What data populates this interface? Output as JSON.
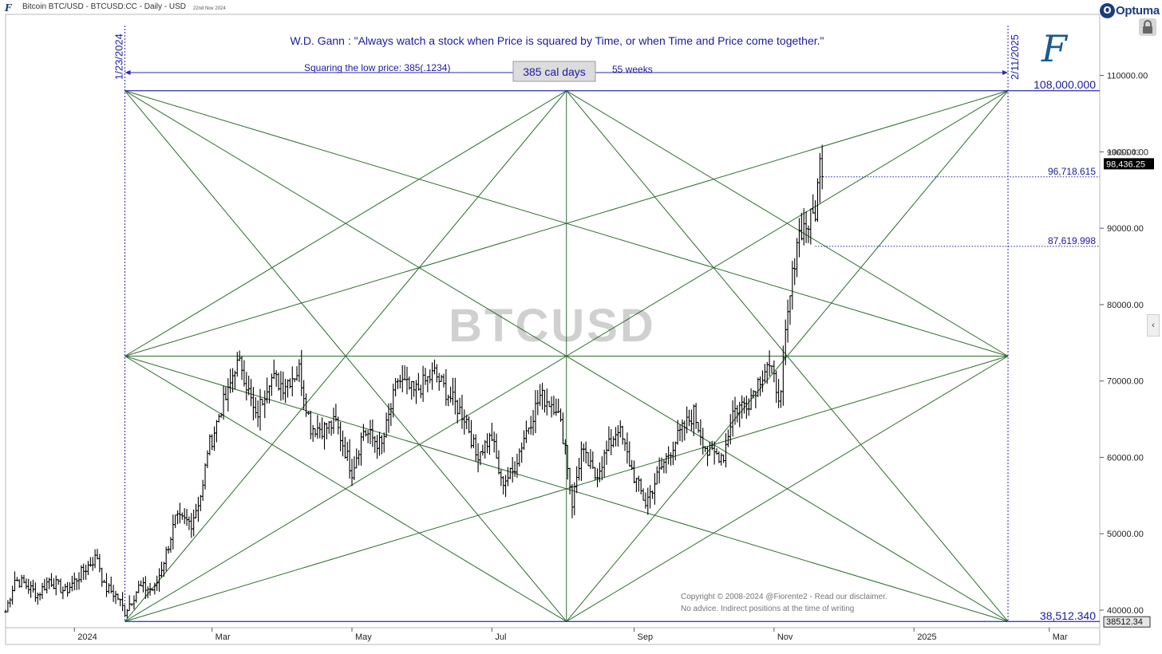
{
  "header": {
    "title": "Bitcoin BTC/USD - BTCUSD:CC - Daily - USD",
    "date": "22nd Nov 2024"
  },
  "brand": {
    "name": "Optuma",
    "badge": "O",
    "author_mark": "F",
    "corner_mark": "F"
  },
  "icons": {
    "lock": "lock-icon",
    "side_panel": "chevron-left-icon",
    "logo": "fiorente-logo-icon"
  },
  "colors": {
    "price_bars": "#000000",
    "gann_lines": "#2e6b2e",
    "annotation_blue": "#1a1aa0",
    "box_blue": "#2a2ab0",
    "watermark": "#d0d0d0",
    "price_tag_bg": "#000000"
  },
  "chart_data": {
    "type": "ohlc",
    "title": "",
    "instrument": "BTCUSD",
    "quote": "W.D. Gann : \"Always watch a stock when Price is squared by Time, or when Time and Price come together.\"",
    "watermark": "BTCUSD",
    "xlabel": "",
    "ylabel": "",
    "x_range": [
      "2023-12-02",
      "2025-03-23"
    ],
    "y_range": [
      37700,
      118000
    ],
    "y_ticks": [
      {
        "value": 40000,
        "label": "40000.00"
      },
      {
        "value": 50000,
        "label": "50000.00"
      },
      {
        "value": 60000,
        "label": "60000.00"
      },
      {
        "value": 70000,
        "label": "70000.00"
      },
      {
        "value": 80000,
        "label": "80000.00"
      },
      {
        "value": 90000,
        "label": "90000.00"
      },
      {
        "value": 100000,
        "label": "100000.00"
      },
      {
        "value": 110000,
        "label": "110000.00"
      }
    ],
    "x_ticks": [
      {
        "date": "2024-01-01",
        "label": "2024"
      },
      {
        "date": "2024-03-01",
        "label": "Mar"
      },
      {
        "date": "2024-05-01",
        "label": "May"
      },
      {
        "date": "2024-07-01",
        "label": "Jul"
      },
      {
        "date": "2024-09-01",
        "label": "Sep"
      },
      {
        "date": "2024-11-01",
        "label": "Nov"
      },
      {
        "date": "2025-01-01",
        "label": "2025"
      },
      {
        "date": "2025-03-01",
        "label": "Mar"
      }
    ],
    "gann_square": {
      "start_date": "2024-01-23",
      "end_date": "2025-02-11",
      "start_label": "1/23/2024",
      "end_label": "2/11/2025",
      "low": 38512.34,
      "high": 108000,
      "low_label": "38,512.340",
      "high_label": "108,000.000",
      "duration_label": "385 cal days",
      "squaring_text": "Squaring the low price: 385(.1234)",
      "weeks_label": "55 weeks"
    },
    "levels": [
      {
        "value": 96718.615,
        "label": "96,718.615",
        "from_date": "2024-11-21"
      },
      {
        "value": 87619.998,
        "label": "87,619.998",
        "from_date": "2024-11-19"
      }
    ],
    "price_tags": [
      {
        "value": 98436.25,
        "label": "98,436.25"
      },
      {
        "value": 38512.34,
        "label": "38512.34"
      }
    ],
    "last_price_partial_label": "99656.43",
    "footnotes": [
      "Copyright © 2008-2024 @Fiorente2 -  Read our disclaimer.",
      "No advice. Indirect positions at the time of writing"
    ],
    "anchors": [
      [
        "2023-12-02",
        39800
      ],
      [
        "2023-12-06",
        44000
      ],
      [
        "2023-12-10",
        43500
      ],
      [
        "2023-12-16",
        42000
      ],
      [
        "2023-12-21",
        44000
      ],
      [
        "2023-12-28",
        42400
      ],
      [
        "2024-01-03",
        44500
      ],
      [
        "2024-01-09",
        46500
      ],
      [
        "2024-01-11",
        47000
      ],
      [
        "2024-01-14",
        43000
      ],
      [
        "2024-01-17",
        42500
      ],
      [
        "2024-01-20",
        41600
      ],
      [
        "2024-01-23",
        39800
      ],
      [
        "2024-01-29",
        43000
      ],
      [
        "2024-02-05",
        42700
      ],
      [
        "2024-02-10",
        47500
      ],
      [
        "2024-02-14",
        51800
      ],
      [
        "2024-02-21",
        51500
      ],
      [
        "2024-02-26",
        56000
      ],
      [
        "2024-02-28",
        61000
      ],
      [
        "2024-03-01",
        62500
      ],
      [
        "2024-03-05",
        66500
      ],
      [
        "2024-03-08",
        68300
      ],
      [
        "2024-03-11",
        72000
      ],
      [
        "2024-03-14",
        72000
      ],
      [
        "2024-03-20",
        65000
      ],
      [
        "2024-03-26",
        70500
      ],
      [
        "2024-04-01",
        69500
      ],
      [
        "2024-04-08",
        71500
      ],
      [
        "2024-04-13",
        64000
      ],
      [
        "2024-04-19",
        63800
      ],
      [
        "2024-04-24",
        64500
      ],
      [
        "2024-05-01",
        58200
      ],
      [
        "2024-05-06",
        63500
      ],
      [
        "2024-05-14",
        61500
      ],
      [
        "2024-05-21",
        70200
      ],
      [
        "2024-05-28",
        68500
      ],
      [
        "2024-06-06",
        71000
      ],
      [
        "2024-06-12",
        68200
      ],
      [
        "2024-06-20",
        64900
      ],
      [
        "2024-06-24",
        60300
      ],
      [
        "2024-07-01",
        62700
      ],
      [
        "2024-07-05",
        56700
      ],
      [
        "2024-07-10",
        58000
      ],
      [
        "2024-07-15",
        62700
      ],
      [
        "2024-07-22",
        68000
      ],
      [
        "2024-07-29",
        66800
      ],
      [
        "2024-08-02",
        61500
      ],
      [
        "2024-08-05",
        54000
      ],
      [
        "2024-08-09",
        60800
      ],
      [
        "2024-08-15",
        57500
      ],
      [
        "2024-08-25",
        64000
      ],
      [
        "2024-09-01",
        57500
      ],
      [
        "2024-09-06",
        54000
      ],
      [
        "2024-09-12",
        58100
      ],
      [
        "2024-09-18",
        61700
      ],
      [
        "2024-09-27",
        65800
      ],
      [
        "2024-10-03",
        60600
      ],
      [
        "2024-10-10",
        60300
      ],
      [
        "2024-10-14",
        66000
      ],
      [
        "2024-10-21",
        67500
      ],
      [
        "2024-10-29",
        72300
      ],
      [
        "2024-11-04",
        67800
      ],
      [
        "2024-11-06",
        75800
      ],
      [
        "2024-11-11",
        88700
      ],
      [
        "2024-11-13",
        90000
      ],
      [
        "2024-11-16",
        90500
      ],
      [
        "2024-11-19",
        92300
      ],
      [
        "2024-11-21",
        98400
      ],
      [
        "2024-11-22",
        98436
      ]
    ]
  }
}
